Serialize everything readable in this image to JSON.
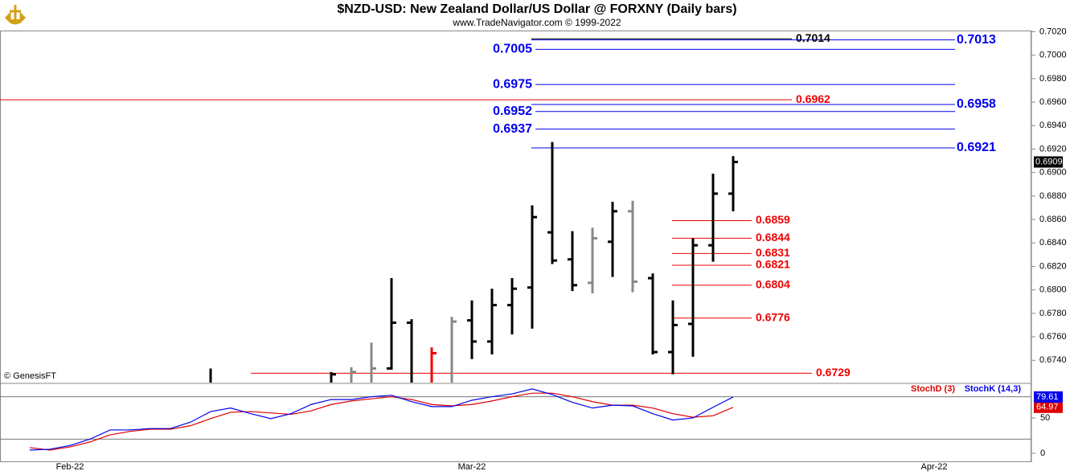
{
  "chart_data": {
    "type": "ohlc",
    "title": "$NZD-USD:  New Zealand Dollar/US Dollar @ FORXNY  (Daily bars)",
    "subtitle": "www.TradeNavigator.com © 1999-2022",
    "watermark": "© GenesisFT",
    "categories": [
      null,
      null,
      "Feb-22",
      null,
      null,
      null,
      null,
      null,
      null,
      null,
      null,
      null,
      null,
      null,
      null,
      null,
      null,
      null,
      null,
      null,
      null,
      null,
      "Mar-22",
      null,
      null,
      null,
      null,
      null,
      null,
      null,
      null,
      null,
      null,
      null,
      null,
      null,
      null,
      null,
      null,
      null,
      null,
      null,
      null,
      null,
      null,
      "Apr-22",
      null,
      null,
      null,
      null
    ],
    "ohlc": {
      "open": [
        null,
        null,
        null,
        null,
        null,
        null,
        null,
        null,
        null,
        0.6716,
        null,
        null,
        null,
        null,
        null,
        0.6718,
        0.6718,
        0.6718,
        0.6733,
        0.6772,
        0.6718,
        0.6718,
        0.6774,
        0.6756,
        0.6787,
        0.6802,
        0.6849,
        0.6826,
        0.6806,
        0.6841,
        0.6867,
        0.681,
        0.6747,
        0.6771,
        0.6838,
        0.6882,
        null,
        null,
        null,
        null,
        null,
        null,
        null,
        null,
        null,
        null,
        null,
        null,
        null,
        null
      ],
      "high": [
        null,
        null,
        null,
        null,
        null,
        null,
        null,
        null,
        null,
        0.6733,
        null,
        null,
        null,
        null,
        null,
        0.673,
        0.6734,
        0.6755,
        0.681,
        0.6775,
        0.6751,
        0.6777,
        0.6791,
        0.6801,
        0.681,
        0.6872,
        0.6926,
        0.685,
        0.6853,
        0.6875,
        0.6876,
        0.6814,
        0.6791,
        0.6844,
        0.6899,
        0.6914,
        null,
        null,
        null,
        null,
        null,
        null,
        null,
        null,
        null,
        null,
        null,
        null,
        null,
        null
      ],
      "low": [
        null,
        null,
        null,
        null,
        null,
        null,
        null,
        null,
        null,
        0.6715,
        null,
        null,
        null,
        null,
        null,
        0.6716,
        0.6716,
        0.6716,
        0.6732,
        0.6716,
        0.6716,
        0.6716,
        0.6741,
        0.6745,
        0.6762,
        0.6767,
        0.6822,
        0.6799,
        0.6797,
        0.6811,
        0.6798,
        0.6745,
        0.6728,
        0.6743,
        0.6824,
        0.6867,
        null,
        null,
        null,
        null,
        null,
        null,
        null,
        null,
        null,
        null,
        null,
        null,
        null,
        null
      ],
      "close": [
        null,
        null,
        null,
        null,
        null,
        null,
        null,
        null,
        null,
        0.6718,
        null,
        null,
        null,
        null,
        null,
        0.6728,
        0.673,
        0.6733,
        0.6772,
        0.6718,
        0.6746,
        0.6773,
        0.6756,
        0.6787,
        0.6801,
        0.6862,
        0.6825,
        0.6804,
        0.6844,
        0.6867,
        0.6807,
        0.6747,
        0.677,
        0.6838,
        0.6882,
        0.6909,
        null,
        null,
        null,
        null,
        null,
        null,
        null,
        null,
        null,
        null,
        null,
        null,
        null,
        null
      ],
      "colors": [
        null,
        null,
        null,
        null,
        null,
        null,
        null,
        null,
        null,
        "#000000",
        null,
        null,
        null,
        null,
        null,
        "#000000",
        "#888888",
        "#888888",
        "#000000",
        "#000000",
        "#ee0000",
        "#888888",
        "#000000",
        "#000000",
        "#000000",
        "#000000",
        "#000000",
        "#000000",
        "#888888",
        "#000000",
        "#888888",
        "#000000",
        "#000000",
        "#000000",
        "#000000",
        "#000000",
        null,
        null,
        null,
        null,
        null,
        null,
        null,
        null,
        null,
        null,
        null,
        null,
        null,
        null
      ]
    },
    "last_price": 0.6909,
    "ylim": [
      0.6721,
      0.7021
    ],
    "yticks": [
      {
        "value": 0.674,
        "label": "0.6740"
      },
      {
        "value": 0.676,
        "label": "0.6760"
      },
      {
        "value": 0.678,
        "label": "0.6780"
      },
      {
        "value": 0.68,
        "label": "0.6800"
      },
      {
        "value": 0.682,
        "label": "0.6820"
      },
      {
        "value": 0.684,
        "label": "0.6840"
      },
      {
        "value": 0.686,
        "label": "0.6860"
      },
      {
        "value": 0.688,
        "label": "0.6880"
      },
      {
        "value": 0.69,
        "label": "0.6900"
      },
      {
        "value": 0.692,
        "label": "0.6920"
      },
      {
        "value": 0.694,
        "label": "0.6940"
      },
      {
        "value": 0.696,
        "label": "0.6960"
      },
      {
        "value": 0.698,
        "label": "0.6980"
      },
      {
        "value": 0.7,
        "label": "0.7000"
      },
      {
        "value": 0.702,
        "label": "0.7020"
      }
    ],
    "levels": [
      {
        "value": 0.7014,
        "color": "#000000"
      },
      {
        "value": 0.7013,
        "color": "#0000ee"
      },
      {
        "value": 0.7005,
        "color": "#0000ee"
      },
      {
        "value": 0.6975,
        "color": "#0000ee"
      },
      {
        "value": 0.6962,
        "color": "#ee0000"
      },
      {
        "value": 0.6958,
        "color": "#0000ee"
      },
      {
        "value": 0.6952,
        "color": "#0000ee"
      },
      {
        "value": 0.6937,
        "color": "#0000ee"
      },
      {
        "value": 0.6921,
        "color": "#0000ee"
      },
      {
        "value": 0.6859,
        "color": "#ee0000"
      },
      {
        "value": 0.6844,
        "color": "#ee0000"
      },
      {
        "value": 0.6831,
        "color": "#ee0000"
      },
      {
        "value": 0.6821,
        "color": "#ee0000"
      },
      {
        "value": 0.6804,
        "color": "#ee0000"
      },
      {
        "value": 0.6776,
        "color": "#ee0000"
      },
      {
        "value": 0.6729,
        "color": "#ee0000"
      }
    ],
    "stoch": {
      "ylim": [
        -11.4,
        97.7
      ],
      "yticks": [
        0,
        50
      ],
      "reference_lines": [
        20,
        80
      ],
      "series": [
        {
          "name": "StochD (3)",
          "color": "#dd0000",
          "values": [
            8,
            4.5,
            9,
            16,
            26,
            31,
            34,
            34,
            39,
            49,
            58,
            59,
            57,
            55,
            60,
            69,
            74,
            77,
            80,
            76,
            69,
            67,
            69,
            74,
            80,
            85,
            85,
            80,
            73,
            68,
            68,
            64,
            56,
            51,
            53,
            64.97,
            null,
            null,
            null,
            null,
            null,
            null,
            null,
            null,
            null,
            null,
            null,
            null,
            null,
            null
          ]
        },
        {
          "name": "StochK (14,3)",
          "color": "#0000ee",
          "values": [
            4.5,
            5.7,
            11,
            20,
            33,
            33,
            35,
            35,
            44,
            59,
            64,
            56,
            49,
            56,
            69,
            76,
            76,
            80,
            82,
            73,
            66,
            66,
            75,
            80,
            84,
            91,
            83,
            72,
            64,
            68,
            67,
            56,
            47,
            50,
            65,
            79.61,
            null,
            null,
            null,
            null,
            null,
            null,
            null,
            null,
            null,
            null,
            null,
            null,
            null,
            null
          ]
        }
      ]
    }
  }
}
